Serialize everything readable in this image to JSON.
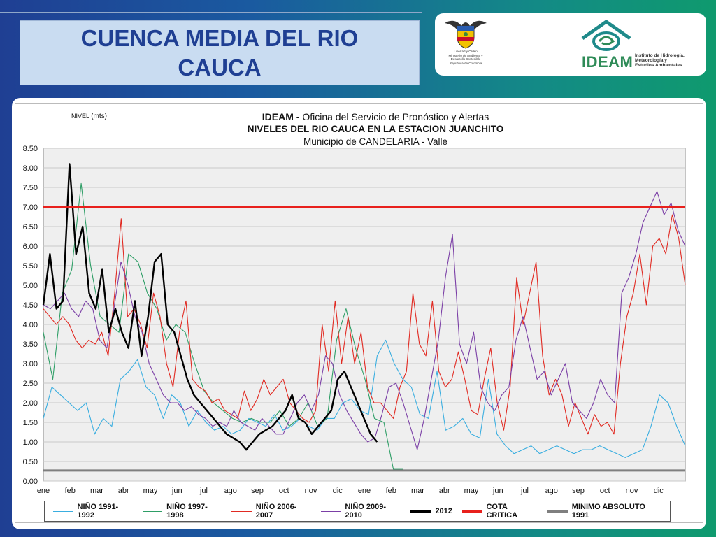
{
  "slide": {
    "title": "CUENCA  MEDIA DEL RIO\nCAUCA"
  },
  "logos": {
    "ministry_text": "Libertad y Orden\nMinisterio de Ambiente y\nDesarrollo Sostenible\nRepública de Colombia",
    "ideam_name": "IDEAM",
    "ideam_subtitle": "Instituto de Hidrología,\nMeteorología y\nEstudios Ambientales"
  },
  "chart_data": {
    "type": "line",
    "title_bold": "IDEAM -",
    "title_rest": " Oficina del Servicio de Pronóstico y Alertas",
    "subtitle": "NIVELES DEL RIO CAUCA EN LA ESTACION JUANCHITO",
    "subtitle2": "Municipio de CANDELARIA - Valle",
    "ylabel_main": "NIVEL",
    "ylabel_unit": "(mts)",
    "ylim": [
      0,
      8.5
    ],
    "ytick_step": 0.5,
    "yticks": [
      "0.00",
      "0.50",
      "1.00",
      "1.50",
      "2.00",
      "2.50",
      "3.00",
      "3.50",
      "4.00",
      "4.50",
      "5.00",
      "5.50",
      "6.00",
      "6.50",
      "7.00",
      "7.50",
      "8.00",
      "8.50"
    ],
    "xticks": [
      "ene",
      "feb",
      "mar",
      "abr",
      "may",
      "jun",
      "jul",
      "ago",
      "sep",
      "oct",
      "nov",
      "dic",
      "ene",
      "feb",
      "mar",
      "abr",
      "may",
      "jun",
      "jul",
      "ago",
      "sep",
      "oct",
      "nov",
      "dic"
    ],
    "grid": true,
    "legend_position": "bottom",
    "reference_lines": [
      {
        "name": "COTA CRITICA",
        "value": 7.0,
        "color": "#e8201c"
      },
      {
        "name": "MINIMO ABSOLUTO 1991",
        "value": 0.27,
        "color": "#7f7f7f"
      }
    ],
    "series": [
      {
        "name": "NIÑO 1991-1992",
        "color": "#3aaee0",
        "values": [
          1.6,
          2.4,
          2.2,
          2.0,
          1.8,
          2.0,
          1.2,
          1.6,
          1.4,
          2.6,
          2.8,
          3.1,
          2.4,
          2.2,
          1.6,
          2.2,
          2.0,
          1.4,
          1.8,
          1.5,
          1.3,
          1.4,
          1.2,
          1.3,
          1.6,
          1.5,
          1.4,
          1.7,
          1.3,
          1.4,
          1.6,
          1.4,
          1.3,
          1.6,
          1.6,
          2.0,
          2.1,
          1.8,
          1.7,
          3.2,
          3.6,
          3.0,
          2.6,
          2.4,
          1.7,
          1.6,
          2.8,
          1.3,
          1.4,
          1.6,
          1.2,
          1.1,
          2.6,
          1.2,
          0.9,
          0.7,
          0.8,
          0.9,
          0.7,
          0.8,
          0.9,
          0.8,
          0.7,
          0.8,
          0.8,
          0.9,
          0.8,
          0.7,
          0.6,
          0.7,
          0.8,
          1.4,
          2.2,
          2.0,
          1.4,
          0.9
        ]
      },
      {
        "name": "NIÑO 1997-1998",
        "color": "#2e9e66",
        "values": [
          3.8,
          2.6,
          4.8,
          5.4,
          7.6,
          5.5,
          4.2,
          4.0,
          3.8,
          5.8,
          5.6,
          4.8,
          4.4,
          3.6,
          4.0,
          3.8,
          3.0,
          2.3,
          2.0,
          1.8,
          1.6,
          1.5,
          1.6,
          1.5,
          1.5,
          1.8,
          1.4,
          1.6,
          2.0,
          1.4,
          1.6,
          3.6,
          4.4,
          3.4,
          2.6,
          1.6,
          1.5,
          0.3,
          0.3
        ]
      },
      {
        "name": "NIÑO 2006-2007",
        "color": "#e12a22",
        "values": [
          4.4,
          4.2,
          4.0,
          4.2,
          4.0,
          3.6,
          3.4,
          3.6,
          3.5,
          3.8,
          3.2,
          4.8,
          6.7,
          4.2,
          4.4,
          4.0,
          3.4,
          4.8,
          4.2,
          3.0,
          2.4,
          3.8,
          4.6,
          2.6,
          2.4,
          2.3,
          2.0,
          2.1,
          1.8,
          1.7,
          1.6,
          2.3,
          1.8,
          2.1,
          2.6,
          2.2,
          2.4,
          2.6,
          2.0,
          1.8,
          1.6,
          1.5,
          1.8,
          4.0,
          2.8,
          4.6,
          3.0,
          4.2,
          3.0,
          3.8,
          2.4,
          2.0,
          2.0,
          1.8,
          1.6,
          2.4,
          2.8,
          4.8,
          3.5,
          3.2,
          4.6,
          2.8,
          2.4,
          2.6,
          3.3,
          2.6,
          1.8,
          1.7,
          2.6,
          3.4,
          2.0,
          1.3,
          2.4,
          5.2,
          4.0,
          4.8,
          5.6,
          3.2,
          2.2,
          2.6,
          2.2,
          1.4,
          2.0,
          1.6,
          1.2,
          1.7,
          1.4,
          1.5,
          1.2,
          3.0,
          4.2,
          4.8,
          5.8,
          4.5,
          6.0,
          6.2,
          5.8,
          6.8,
          6.2,
          5.0
        ]
      },
      {
        "name": "NIÑO 2009-2010",
        "color": "#7b3fa6",
        "values": [
          4.5,
          4.4,
          4.6,
          4.8,
          4.4,
          4.2,
          4.6,
          4.4,
          3.6,
          3.4,
          4.4,
          5.6,
          5.0,
          4.2,
          3.8,
          3.0,
          2.6,
          2.2,
          2.0,
          2.0,
          1.8,
          1.9,
          1.7,
          1.6,
          1.4,
          1.5,
          1.4,
          1.8,
          1.5,
          1.4,
          1.3,
          1.6,
          1.4,
          1.2,
          1.2,
          1.6,
          2.0,
          2.2,
          1.8,
          2.2,
          3.2,
          3.0,
          2.2,
          1.8,
          1.5,
          1.2,
          1.0,
          1.1,
          1.7,
          2.4,
          2.5,
          2.0,
          1.4,
          0.8,
          1.6,
          2.6,
          3.6,
          5.2,
          6.3,
          3.5,
          3.0,
          3.8,
          2.4,
          2.0,
          1.8,
          2.2,
          2.4,
          3.6,
          4.2,
          3.4,
          2.6,
          2.8,
          2.2,
          2.6,
          3.0,
          2.0,
          1.8,
          1.6,
          2.0,
          2.6,
          2.2,
          2.0,
          4.8,
          5.2,
          5.8,
          6.6,
          7.0,
          7.4,
          6.8,
          7.1,
          6.4,
          6.0
        ]
      },
      {
        "name": "2012",
        "color": "#000000",
        "values": [
          4.5,
          5.8,
          4.4,
          4.6,
          8.1,
          5.8,
          6.5,
          4.8,
          4.4,
          5.4,
          3.8,
          4.4,
          3.8,
          3.4,
          4.6,
          3.2,
          4.2,
          5.6,
          5.8,
          4.0,
          3.8,
          3.2,
          2.6,
          2.2,
          2.0,
          1.8,
          1.6,
          1.4,
          1.2,
          1.1,
          1.0,
          0.8,
          1.0,
          1.2,
          1.3,
          1.4,
          1.6,
          1.8,
          2.2,
          1.6,
          1.5,
          1.2,
          1.4,
          1.6,
          1.8,
          2.6,
          2.8,
          2.4,
          2.0,
          1.6,
          1.2,
          1.0
        ]
      },
      {
        "name": "COTA CRITICA",
        "color": "#e8201c",
        "values": [
          7.0
        ]
      },
      {
        "name": "MINIMO ABSOLUTO 1991",
        "color": "#7f7f7f",
        "values": [
          0.27
        ]
      }
    ]
  }
}
